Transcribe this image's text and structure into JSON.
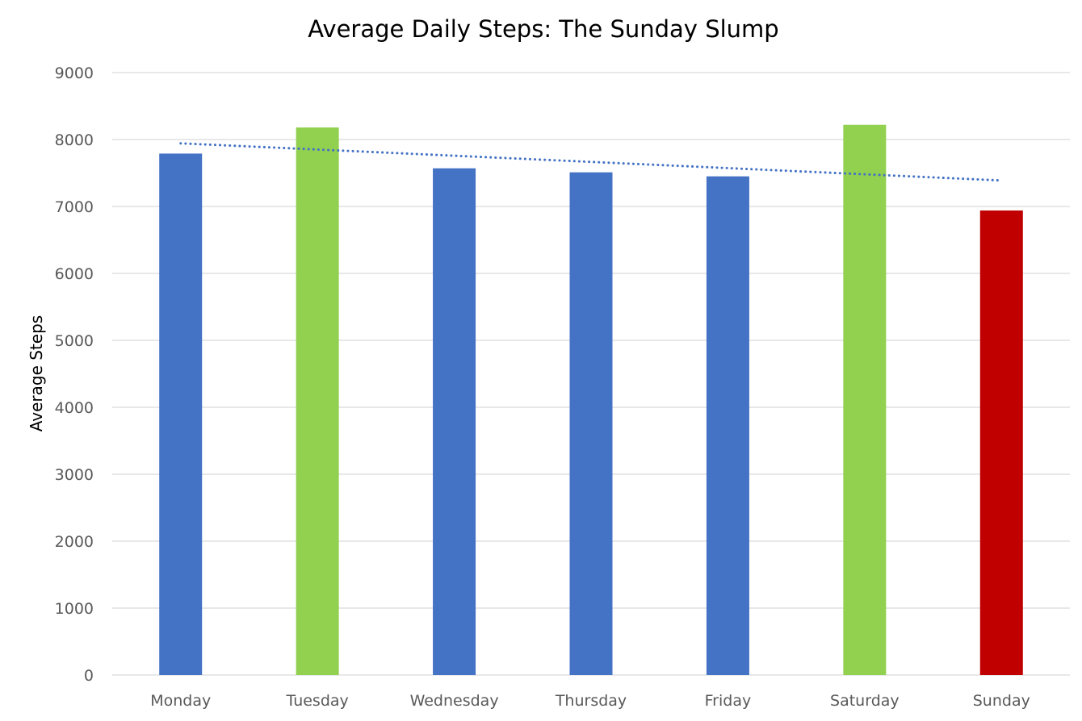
{
  "chart_data": {
    "type": "bar",
    "title": "Average Daily Steps: The Sunday Slump",
    "xlabel": "",
    "ylabel": "Average Steps",
    "ylim": [
      0,
      9000
    ],
    "yticks": [
      0,
      1000,
      2000,
      3000,
      4000,
      5000,
      6000,
      7000,
      8000,
      9000
    ],
    "categories": [
      "Monday",
      "Tuesday",
      "Wednesday",
      "Thursday",
      "Friday",
      "Saturday",
      "Sunday"
    ],
    "values": [
      7790,
      8180,
      7570,
      7510,
      7450,
      8220,
      6940
    ],
    "bar_colors": [
      "#4472C4",
      "#92D050",
      "#4472C4",
      "#4472C4",
      "#4472C4",
      "#92D050",
      "#C00000"
    ],
    "trendline": {
      "type": "linear",
      "style": "dotted",
      "color": "#4472C4"
    },
    "grid": true,
    "legend": "none"
  }
}
